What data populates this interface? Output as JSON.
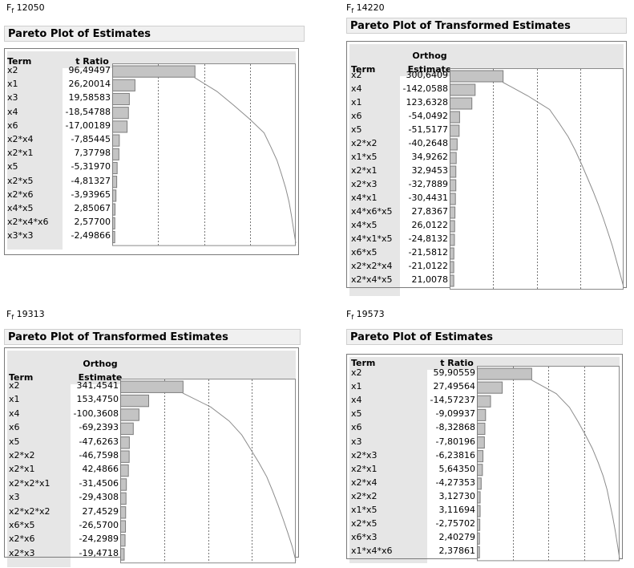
{
  "chart_data": [
    {
      "type": "bar",
      "figure_label": "12050",
      "title": "Pareto Plot of Estimates",
      "term_header": "Term",
      "value_header_lines": [
        "t Ratio"
      ],
      "terms": [
        "x2",
        "x1",
        "x3",
        "x4",
        "x6",
        "x2*x4",
        "x2*x1",
        "x5",
        "x2*x5",
        "x2*x6",
        "x4*x5",
        "x2*x4*x6",
        "x3*x3"
      ],
      "values_text": [
        "96,49497",
        "26,20014",
        "19,58583",
        "-18,54788",
        "-17,00189",
        "-7,85445",
        "7,37798",
        "-5,31970",
        "-4,81327",
        "-3,93965",
        "2,85067",
        "2,57700",
        "-2,49866"
      ],
      "values": [
        96.49497,
        26.20014,
        19.58583,
        -18.54788,
        -17.00189,
        -7.85445,
        7.37798,
        -5.3197,
        -4.81327,
        -3.93965,
        2.85067,
        2.577,
        -2.49866
      ],
      "grid": true,
      "cumulative_curve": true
    },
    {
      "type": "bar",
      "figure_label": "14220",
      "title": "Pareto Plot of Transformed Estimates",
      "term_header": "Term",
      "value_header_lines": [
        "Orthog",
        "Estimate"
      ],
      "terms": [
        "x2",
        "x4",
        "x1",
        "x6",
        "x5",
        "x2*x2",
        "x1*x5",
        "x2*x1",
        "x2*x3",
        "x4*x1",
        "x4*x6*x5",
        "x4*x5",
        "x4*x1*x5",
        "x6*x5",
        "x2*x2*x4",
        "x2*x4*x5"
      ],
      "values_text": [
        "300,6409",
        "-142,0588",
        "123,6328",
        "-54,0492",
        "-51,5177",
        "-40,2648",
        "34,9262",
        "32,9453",
        "-32,7889",
        "-30,4431",
        "27,8367",
        "26,0122",
        "-24,8132",
        "-21,5812",
        "-21,0122",
        "21,0078"
      ],
      "values": [
        300.6409,
        -142.0588,
        123.6328,
        -54.0492,
        -51.5177,
        -40.2648,
        34.9262,
        32.9453,
        -32.7889,
        -30.4431,
        27.8367,
        26.0122,
        -24.8132,
        -21.5812,
        -21.0122,
        21.0078
      ],
      "grid": true,
      "cumulative_curve": true
    },
    {
      "type": "bar",
      "figure_label": "19313",
      "title": "Pareto Plot of Transformed Estimates",
      "term_header": "Term",
      "value_header_lines": [
        "Orthog",
        "Estimate"
      ],
      "terms": [
        "x2",
        "x1",
        "x4",
        "x6",
        "x5",
        "x2*x2",
        "x2*x1",
        "x2*x2*x1",
        "x3",
        "x2*x2*x2",
        "x6*x5",
        "x2*x6",
        "x2*x3"
      ],
      "values_text": [
        "341,4541",
        "153,4750",
        "-100,3608",
        "-69,2393",
        "-47,6263",
        "-46,7598",
        "42,4866",
        "-31,4506",
        "-29,4308",
        "27,4529",
        "-26,5700",
        "-24,2989",
        "-19,4718"
      ],
      "values": [
        341.4541,
        153.475,
        -100.3608,
        -69.2393,
        -47.6263,
        -46.7598,
        42.4866,
        -31.4506,
        -29.4308,
        27.4529,
        -26.57,
        -24.2989,
        -19.4718
      ],
      "grid": true,
      "cumulative_curve": true
    },
    {
      "type": "bar",
      "figure_label": "19573",
      "title": "Pareto Plot of Estimates",
      "term_header": "Term",
      "value_header_lines": [
        "t Ratio"
      ],
      "terms": [
        "x2",
        "x1",
        "x4",
        "x5",
        "x6",
        "x3",
        "x2*x3",
        "x2*x1",
        "x2*x4",
        "x2*x2",
        "x1*x5",
        "x2*x5",
        "x6*x3",
        "x1*x4*x6"
      ],
      "values_text": [
        "59,90559",
        "27,49564",
        "-14,57237",
        "-9,09937",
        "-8,32868",
        "-7,80196",
        "-6,23816",
        "5,64350",
        "-4,27353",
        "3,12730",
        "3,11694",
        "-2,75702",
        "2,40279",
        "2,37861"
      ],
      "values": [
        59.90559,
        27.49564,
        -14.57237,
        -9.09937,
        -8.32868,
        -7.80196,
        -6.23816,
        5.6435,
        -4.27353,
        3.1273,
        3.11694,
        -2.75702,
        2.40279,
        2.37861
      ],
      "grid": true,
      "cumulative_curve": true
    }
  ]
}
